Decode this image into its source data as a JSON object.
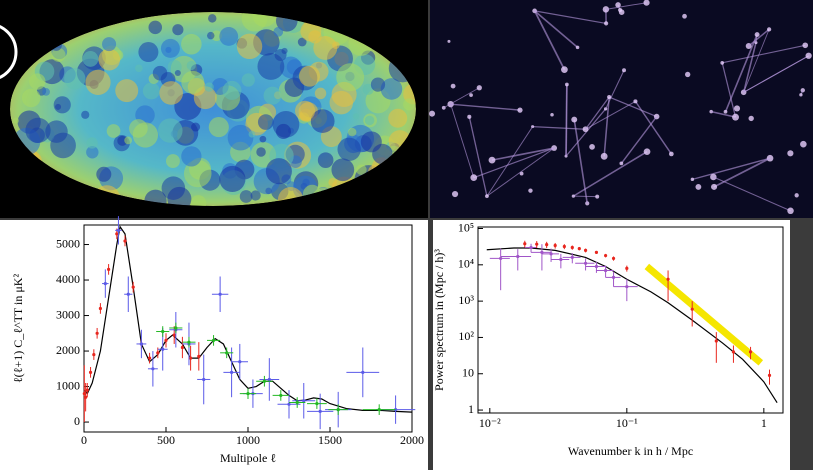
{
  "chart_data": [
    {
      "type": "line",
      "xlabel": "Multipole ℓ",
      "ylabel": "ℓ(ℓ+1) C_ℓ^TT in μK²",
      "xlim": [
        0,
        2000
      ],
      "ylim": [
        -280,
        5550
      ],
      "xticks": [
        0,
        500,
        1000,
        1500,
        2000
      ],
      "yticks": [
        0,
        1000,
        2000,
        3000,
        4000,
        5000
      ],
      "series": [
        {
          "color": "#000000",
          "x": [
            2,
            20,
            50,
            100,
            150,
            200,
            220,
            250,
            300,
            350,
            400,
            450,
            500,
            540,
            600,
            650,
            700,
            750,
            800,
            850,
            900,
            950,
            1000,
            1050,
            1100,
            1150,
            1200,
            1250,
            1300,
            1350,
            1400,
            1450,
            1500,
            1600,
            1700,
            1800,
            1900,
            2000
          ],
          "values": [
            900,
            800,
            1100,
            2000,
            3500,
            5000,
            5500,
            5300,
            3800,
            2200,
            1700,
            1900,
            2300,
            2450,
            2200,
            1800,
            1800,
            2100,
            2350,
            2200,
            1700,
            1200,
            950,
            1000,
            1150,
            1150,
            950,
            750,
            600,
            620,
            680,
            650,
            520,
            380,
            330,
            330,
            300,
            280
          ]
        },
        {
          "color": "#e8261e",
          "x": [
            2,
            10,
            20,
            40,
            60,
            80,
            100,
            150,
            200,
            250,
            300,
            350,
            400,
            450,
            500,
            550,
            600,
            650,
            700
          ],
          "values": [
            800,
            700,
            900,
            1400,
            1900,
            2500,
            3200,
            4300,
            5300,
            5100,
            3800,
            2200,
            1800,
            1950,
            2300,
            2450,
            2100,
            1800,
            1850
          ],
          "errors": [
            800,
            400,
            200,
            150,
            150,
            150,
            150,
            150,
            150,
            150,
            150,
            150,
            150,
            150,
            200,
            250,
            300,
            350,
            400
          ]
        },
        {
          "color": "#5a5ae8",
          "x": [
            130,
            210,
            270,
            350,
            420,
            480,
            560,
            640,
            730,
            830,
            900,
            950,
            1030,
            1130,
            1250,
            1340,
            1440,
            1550,
            1700,
            1900
          ],
          "values": [
            3900,
            5400,
            3600,
            2200,
            1500,
            2050,
            2600,
            2200,
            1200,
            3600,
            1400,
            1700,
            800,
            1200,
            500,
            600,
            300,
            350,
            1400,
            350
          ],
          "errors": [
            400,
            400,
            500,
            400,
            500,
            600,
            500,
            600,
            700,
            500,
            700,
            500,
            400,
            600,
            400,
            500,
            500,
            500,
            700,
            400
          ],
          "xerrors": [
            20,
            20,
            25,
            30,
            30,
            30,
            40,
            40,
            40,
            50,
            50,
            50,
            60,
            60,
            70,
            70,
            80,
            80,
            100,
            120
          ]
        },
        {
          "color": "#22b822",
          "x": [
            480,
            560,
            640,
            790,
            870,
            1000,
            1100,
            1200,
            1300,
            1420,
            1550,
            1800
          ],
          "values": [
            2550,
            2650,
            2250,
            2300,
            1950,
            800,
            1150,
            750,
            550,
            520,
            350,
            350
          ],
          "errors": [
            150,
            150,
            150,
            150,
            150,
            150,
            150,
            150,
            150,
            150,
            150,
            150
          ],
          "xerrors": [
            40,
            40,
            40,
            40,
            40,
            50,
            50,
            50,
            50,
            60,
            60,
            100
          ]
        }
      ]
    },
    {
      "type": "line",
      "xscale": "log",
      "yscale": "log",
      "xlabel": "Wavenumber k in h / Mpc",
      "ylabel": "Power spectrum in (Mpc / h)³",
      "xlim": [
        0.0082,
        1.38
      ],
      "ylim": [
        0.83,
        110000
      ],
      "xticks": [
        {
          "value": 0.01,
          "label": "10⁻²"
        },
        {
          "value": 0.1,
          "label": "10⁻¹"
        },
        1
      ],
      "yticks": [
        1,
        10,
        {
          "value": 100,
          "label": "10²"
        },
        {
          "value": 1000,
          "label": "10³"
        },
        {
          "value": 10000,
          "label": "10⁴"
        },
        {
          "value": 100000,
          "label": "10⁵"
        }
      ],
      "series": [
        {
          "color": "#000000",
          "x": [
            0.0095,
            0.015,
            0.02,
            0.03,
            0.05,
            0.07,
            0.1,
            0.15,
            0.2,
            0.3,
            0.5,
            0.7,
            1,
            1.25
          ],
          "values": [
            26000,
            29000,
            29000,
            25000,
            16000,
            9000,
            4000,
            1800,
            900,
            300,
            70,
            25,
            6,
            1.6
          ]
        },
        {
          "color": "#f5e600",
          "width": 7,
          "x": [
            0.14,
            0.95
          ],
          "values": [
            9000,
            20
          ]
        },
        {
          "color": "#a055c8",
          "x": [
            0.012,
            0.016,
            0.02,
            0.024,
            0.028,
            0.033,
            0.04,
            0.05,
            0.06,
            0.07,
            0.08,
            0.1
          ],
          "values": [
            15000,
            17000,
            30000,
            22000,
            20000,
            14000,
            16000,
            11000,
            9000,
            7000,
            4500,
            2500
          ],
          "errors": [
            13000,
            10000,
            8000,
            15000,
            8000,
            6000,
            5000,
            4000,
            3000,
            2500,
            2000,
            1500
          ],
          "xerrors": [
            0.002,
            0.004,
            0.002,
            0.004,
            0.004,
            0.005,
            0.006,
            0.008,
            0.01,
            0.01,
            0.01,
            0.02
          ]
        },
        {
          "color": "#e8261e",
          "x": [
            0.018,
            0.022,
            0.026,
            0.03,
            0.035,
            0.04,
            0.045,
            0.05,
            0.06,
            0.07,
            0.08,
            0.1,
            0.2,
            0.3,
            0.45,
            0.6,
            0.8,
            1.1
          ],
          "values": [
            38000,
            37000,
            36000,
            34000,
            32000,
            30000,
            28000,
            25000,
            22000,
            18000,
            15000,
            8000,
            4000,
            600,
            80,
            40,
            40,
            9
          ],
          "errors": [
            8000,
            8000,
            7000,
            6000,
            5000,
            4000,
            3000,
            3000,
            2000,
            2000,
            2000,
            1500,
            3000,
            400,
            60,
            20,
            15,
            4
          ]
        }
      ]
    }
  ]
}
